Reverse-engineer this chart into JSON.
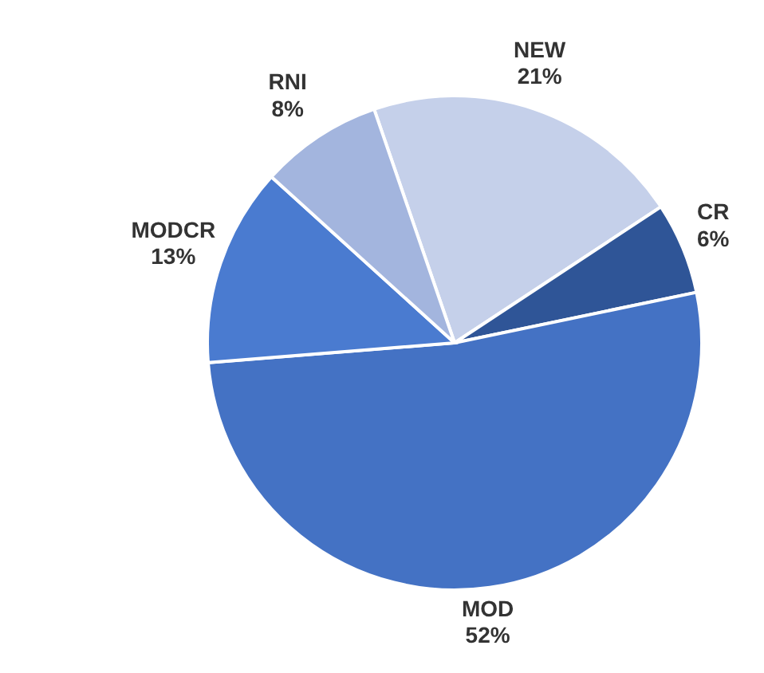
{
  "chart_data": {
    "type": "pie",
    "categories": [
      "NEW",
      "CR",
      "MOD",
      "MODCR",
      "RNI"
    ],
    "values": [
      21,
      6,
      52,
      13,
      8
    ],
    "value_labels": [
      "21%",
      "6%",
      "52%",
      "13%",
      "8%"
    ],
    "colors": [
      "#c5d0ea",
      "#2f5597",
      "#4472c4",
      "#4a7bd0",
      "#a3b5de"
    ]
  }
}
